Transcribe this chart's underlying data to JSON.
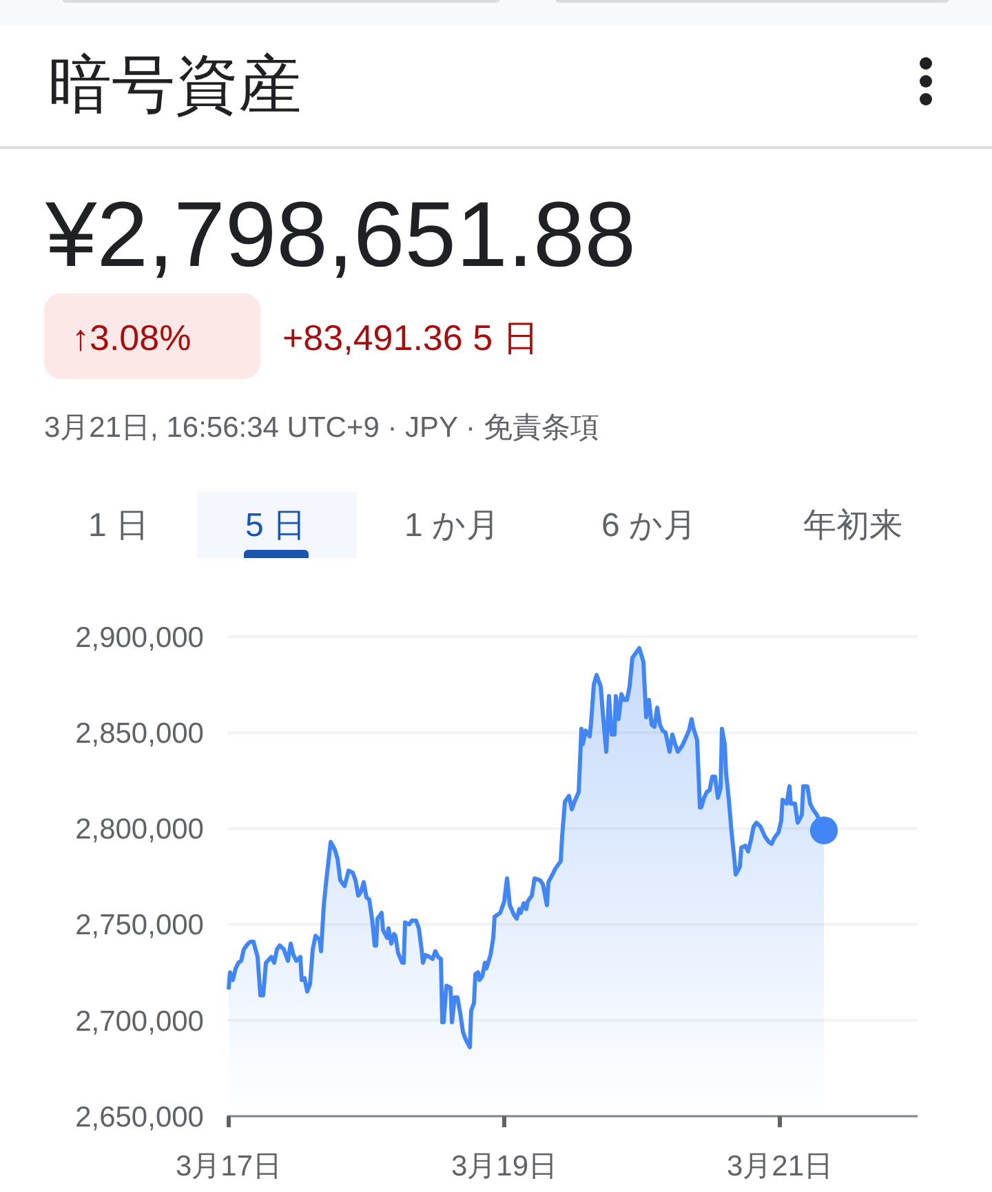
{
  "chart_data": {
    "type": "area",
    "title": "暗号資産",
    "subtitle": "¥2,798,651.88",
    "annotations": [
      "↑3.08%",
      "+83,491.36 5 日",
      "3月21日, 16:56:34 UTC+9 · JPY · 免責条項",
      "1 日",
      "5 日",
      "1 か月",
      "6 か月",
      "年初来"
    ],
    "xlim": [
      "--03-17",
      "--03-22"
    ],
    "xticks": [
      {
        "value": "--03-17",
        "label": "3月17日"
      },
      {
        "value": "--03-19",
        "label": "3月19日"
      },
      {
        "value": "--03-21",
        "label": "3月21日"
      }
    ],
    "ylim": [
      2650000,
      2900000
    ],
    "yticks": [
      {
        "value": 2650000,
        "label": "2,650,000"
      },
      {
        "value": 2700000,
        "label": "2,700,000"
      },
      {
        "value": 2750000,
        "label": "2,750,000"
      },
      {
        "value": 2800000,
        "label": "2,800,000"
      },
      {
        "value": 2850000,
        "label": "2,850,000"
      },
      {
        "value": 2900000,
        "label": "2,900,000"
      }
    ],
    "grid": "y",
    "series": [
      {
        "color": "#4285f4",
        "x": [
          "--03-17T00:00",
          "--03-17T00:14",
          "--03-17T00:43",
          "--03-17T01:12",
          "--03-17T01:41",
          "--03-17T02:10",
          "--03-17T02:38",
          "--03-17T03:22",
          "--03-17T03:50",
          "--03-17T04:19",
          "--03-17T05:02",
          "--03-17T05:31",
          "--03-17T06:00",
          "--03-17T06:29",
          "--03-17T07:26",
          "--03-17T07:55",
          "--03-17T08:24",
          "--03-17T08:53",
          "--03-17T09:36",
          "--03-17T10:19",
          "--03-17T10:48",
          "--03-17T11:17",
          "--03-17T11:46",
          "--03-17T12:29",
          "--03-17T12:43",
          "--03-17T13:12",
          "--03-17T13:41",
          "--03-17T14:10",
          "--03-17T14:38",
          "--03-17T15:07",
          "--03-17T15:50",
          "--03-17T16:05",
          "--03-17T16:34",
          "--03-17T17:02",
          "--03-17T17:46",
          "--03-17T18:29",
          "--03-17T18:58",
          "--03-17T19:26",
          "--03-17T20:10",
          "--03-17T20:53",
          "--03-17T21:36",
          "--03-17T22:05",
          "--03-17T22:34",
          "--03-17T23:02",
          "--03-17T23:31",
          "--03-18T00:00",
          "--03-18T00:29",
          "--03-18T00:58",
          "--03-18T01:26",
          "--03-18T01:41",
          "--03-18T01:55",
          "--03-18T02:38",
          "--03-18T02:53",
          "--03-18T03:36",
          "--03-18T03:50",
          "--03-18T04:19",
          "--03-18T04:48",
          "--03-18T05:02",
          "--03-18T05:31",
          "--03-18T06:14",
          "--03-18T06:29",
          "--03-18T06:43",
          "--03-18T07:26",
          "--03-18T07:55",
          "--03-18T08:38",
          "--03-18T09:07",
          "--03-18T09:36",
          "--03-18T09:50",
          "--03-18T10:19",
          "--03-18T11:02",
          "--03-18T11:31",
          "--03-18T12:00",
          "--03-18T12:29",
          "--03-18T12:58",
          "--03-18T13:12",
          "--03-18T13:26",
          "--03-18T13:55",
          "--03-18T14:38",
          "--03-18T14:53",
          "--03-18T15:22",
          "--03-18T15:50",
          "--03-18T16:19",
          "--03-18T16:48",
          "--03-18T17:17",
          "--03-18T18:00",
          "--03-18T18:14",
          "--03-18T18:43",
          "--03-18T18:58",
          "--03-18T19:26",
          "--03-18T19:41",
          "--03-18T20:10",
          "--03-18T20:38",
          "--03-18T20:53",
          "--03-18T21:36",
          "--03-18T22:05",
          "--03-18T22:19",
          "--03-18T22:48",
          "--03-18T23:17",
          "--03-19T00:00",
          "--03-19T00:29",
          "--03-19T00:58",
          "--03-19T01:41",
          "--03-19T02:10",
          "--03-19T02:38",
          "--03-19T02:53",
          "--03-19T03:22",
          "--03-19T03:50",
          "--03-19T04:05",
          "--03-19T04:48",
          "--03-19T05:17",
          "--03-19T06:14",
          "--03-19T06:43",
          "--03-19T07:26",
          "--03-19T07:41",
          "--03-19T08:24",
          "--03-19T08:53",
          "--03-19T09:50",
          "--03-19T10:05",
          "--03-19T10:34",
          "--03-19T11:17",
          "--03-19T11:46",
          "--03-19T12:14",
          "--03-19T12:58",
          "--03-19T13:26",
          "--03-19T13:41",
          "--03-19T14:10",
          "--03-19T14:53",
          "--03-19T15:07",
          "--03-19T15:36",
          "--03-19T16:05",
          "--03-19T16:48",
          "--03-19T17:17",
          "--03-19T17:46",
          "--03-19T18:14",
          "--03-19T18:43",
          "--03-19T19:12",
          "--03-19T19:26",
          "--03-19T19:55",
          "--03-19T20:24",
          "--03-19T20:53",
          "--03-19T21:22",
          "--03-19T21:50",
          "--03-19T22:19",
          "--03-19T23:02",
          "--03-19T23:31",
          "--03-20T00:14",
          "--03-20T00:43",
          "--03-20T01:12",
          "--03-20T01:41",
          "--03-20T02:10",
          "--03-20T02:38",
          "--03-20T03:07",
          "--03-20T03:36",
          "--03-20T04:05",
          "--03-20T04:48",
          "--03-20T05:17",
          "--03-20T05:46",
          "--03-20T06:14",
          "--03-20T06:58",
          "--03-20T07:26",
          "--03-20T08:10",
          "--03-20T08:38",
          "--03-20T08:53",
          "--03-20T09:36",
          "--03-20T10:05",
          "--03-20T10:19",
          "--03-20T10:48",
          "--03-20T11:17",
          "--03-20T11:46",
          "--03-20T12:14",
          "--03-20T12:43",
          "--03-20T13:12",
          "--03-20T13:41",
          "--03-20T13:55",
          "--03-20T14:24",
          "--03-20T14:38",
          "--03-20T15:07",
          "--03-20T15:36",
          "--03-20T16:05",
          "--03-20T16:19",
          "--03-20T17:02",
          "--03-20T17:17",
          "--03-20T18:00",
          "--03-20T18:29",
          "--03-20T18:58",
          "--03-20T19:26",
          "--03-20T19:55",
          "--03-20T20:38",
          "--03-20T21:22",
          "--03-20T22:05",
          "--03-20T22:34",
          "--03-20T23:02",
          "--03-20T23:46",
          "--03-21T00:14",
          "--03-21T00:29",
          "--03-21T01:12",
          "--03-21T01:41",
          "--03-21T01:55",
          "--03-21T02:38",
          "--03-21T03:07",
          "--03-21T03:50",
          "--03-21T04:05",
          "--03-21T04:48",
          "--03-21T05:17",
          "--03-21T05:46",
          "--03-21T06:29",
          "--03-21T07:41"
        ],
        "values": [
          2717000,
          2725000,
          2721000,
          2727000,
          2730000,
          2731000,
          2737000,
          2740000,
          2741000,
          2741000,
          2733000,
          2713000,
          2713000,
          2730000,
          2733000,
          2730000,
          2737000,
          2739000,
          2737000,
          2731000,
          2740000,
          2734000,
          2731000,
          2733000,
          2721000,
          2722000,
          2715000,
          2719000,
          2737000,
          2744000,
          2742000,
          2736000,
          2760000,
          2774000,
          2793000,
          2789000,
          2784000,
          2773000,
          2770000,
          2778000,
          2777000,
          2773000,
          2765000,
          2767000,
          2772000,
          2764000,
          2763000,
          2753000,
          2739000,
          2739000,
          2753000,
          2756000,
          2747000,
          2743000,
          2748000,
          2740000,
          2745000,
          2744000,
          2735000,
          2730000,
          2730000,
          2751000,
          2750000,
          2752000,
          2752000,
          2748000,
          2737000,
          2730000,
          2734000,
          2733000,
          2732000,
          2736000,
          2733000,
          2732000,
          2699000,
          2699000,
          2718000,
          2717000,
          2699000,
          2712000,
          2712000,
          2704000,
          2694000,
          2690000,
          2686000,
          2705000,
          2709000,
          2724000,
          2725000,
          2721000,
          2723000,
          2730000,
          2727000,
          2734000,
          2743000,
          2754000,
          2755000,
          2756000,
          2762000,
          2774000,
          2760000,
          2755000,
          2753000,
          2758000,
          2756000,
          2761000,
          2758000,
          2762000,
          2765000,
          2774000,
          2773000,
          2771000,
          2760000,
          2772000,
          2776000,
          2779000,
          2783000,
          2796000,
          2814000,
          2817000,
          2810000,
          2814000,
          2819000,
          2852000,
          2844000,
          2851000,
          2848000,
          2855000,
          2875000,
          2880000,
          2874000,
          2856000,
          2840000,
          2869000,
          2849000,
          2849000,
          2869000,
          2857000,
          2870000,
          2867000,
          2867000,
          2874000,
          2889000,
          2892000,
          2894000,
          2887000,
          2858000,
          2867000,
          2854000,
          2853000,
          2863000,
          2854000,
          2851000,
          2850000,
          2840000,
          2849000,
          2844000,
          2840000,
          2843000,
          2846000,
          2851000,
          2857000,
          2853000,
          2846000,
          2811000,
          2811000,
          2816000,
          2819000,
          2820000,
          2827000,
          2827000,
          2816000,
          2821000,
          2852000,
          2844000,
          2829000,
          2815000,
          2798000,
          2784000,
          2776000,
          2780000,
          2790000,
          2791000,
          2788000,
          2794000,
          2801000,
          2803000,
          2801000,
          2796000,
          2793000,
          2792000,
          2795000,
          2798000,
          2804000,
          2815000,
          2813000,
          2822000,
          2813000,
          2813000,
          2803000,
          2807000,
          2822000,
          2822000,
          2813000,
          2810000,
          2807000,
          2799000
        ]
      },
      {
        "type": "scatter",
        "color": "#4285f4",
        "marker": "circle",
        "x": [
          "--03-21T07:41"
        ],
        "values": [
          2799000
        ]
      }
    ]
  }
}
